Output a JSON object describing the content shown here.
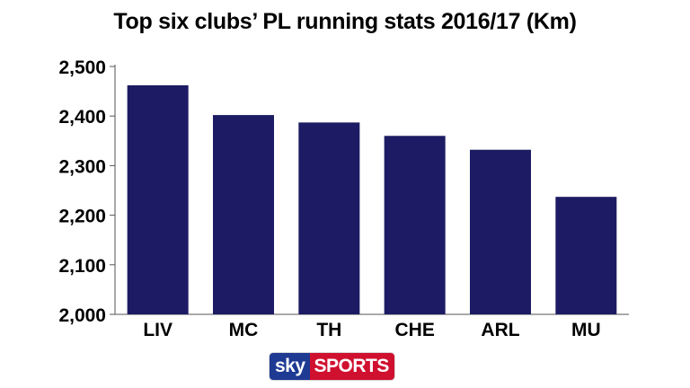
{
  "chart_data": {
    "type": "bar",
    "title": "Top six clubs’ PL running stats 2016/17 (Km)",
    "categories": [
      "LIV",
      "MC",
      "TH",
      "CHE",
      "ARL",
      "MU"
    ],
    "values": [
      2462,
      2402,
      2387,
      2360,
      2332,
      2237
    ],
    "yticks": [
      "2,000",
      "2,100",
      "2,200",
      "2,300",
      "2,400",
      "2,500"
    ],
    "ylim": [
      2000,
      2500
    ],
    "xlabel": "",
    "ylabel": "",
    "grid": false,
    "bar_color": "#1c1b63"
  },
  "branding": {
    "sky": "sky",
    "sports": "SPORTS"
  }
}
